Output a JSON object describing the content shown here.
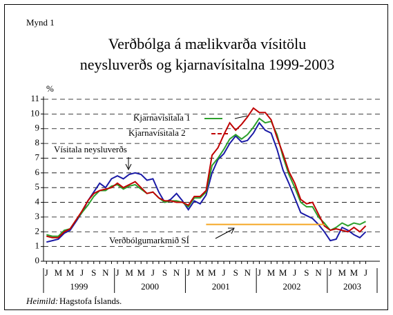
{
  "chart_data": {
    "type": "line",
    "label": "Mynd 1",
    "title": [
      "Verðbólga á mælikvarða vísitölu",
      "neysluverðs og kjarnavísitalna 1999-2003"
    ],
    "y_unit": "%",
    "source_label": "Heimild:",
    "source": "Hagstofa Íslands.",
    "categories": [
      "J",
      null,
      "M",
      null,
      "M",
      null,
      "J",
      null,
      "S",
      null,
      "N",
      null,
      "J",
      null,
      "M",
      null,
      "M",
      null,
      "J",
      null,
      "S",
      null,
      "N",
      null,
      "J",
      null,
      "M",
      null,
      "M",
      null,
      "J",
      null,
      "S",
      null,
      "N",
      null,
      "J",
      null,
      "M",
      null,
      "M",
      null,
      "J",
      null,
      "S",
      null,
      "N",
      null,
      "J",
      null,
      "M",
      null,
      "M",
      null,
      "J"
    ],
    "years": [
      "1999",
      "2000",
      "2001",
      "2002",
      "2003"
    ],
    "ylim": [
      0,
      11
    ],
    "yticks": [
      0,
      1,
      2,
      3,
      4,
      5,
      6,
      7,
      8,
      9,
      10,
      11
    ],
    "grid": true,
    "series": [
      {
        "name": "Vísitala neysluverðs",
        "color": "#1a1aa6",
        "values": [
          1.3,
          1.4,
          1.5,
          1.9,
          2.1,
          2.7,
          3.3,
          4.1,
          4.7,
          5.3,
          5.0,
          5.6,
          5.8,
          5.6,
          5.9,
          6.0,
          5.9,
          5.5,
          5.6,
          4.7,
          4.0,
          4.2,
          4.6,
          4.1,
          3.5,
          4.1,
          3.9,
          4.5,
          6.0,
          6.9,
          7.3,
          8.0,
          8.5,
          8.1,
          8.2,
          8.7,
          9.4,
          8.9,
          8.7,
          7.6,
          6.2,
          5.3,
          4.3,
          3.3,
          3.1,
          2.9,
          2.5,
          2.0,
          1.4,
          1.5,
          2.3,
          2.1,
          1.8,
          1.6,
          2.0
        ]
      },
      {
        "name": "Kjarnavísitala 1",
        "color": "#2ca02c",
        "values": [
          1.8,
          1.7,
          1.7,
          2.1,
          2.2,
          2.8,
          3.3,
          3.8,
          4.4,
          4.8,
          4.8,
          5.1,
          5.2,
          4.9,
          5.1,
          5.2,
          4.9,
          4.6,
          4.7,
          4.3,
          4.0,
          4.1,
          4.1,
          4.0,
          3.7,
          4.3,
          4.3,
          4.7,
          6.5,
          7.0,
          7.6,
          8.3,
          8.6,
          8.3,
          8.6,
          9.1,
          9.7,
          9.4,
          9.5,
          8.6,
          7.1,
          5.9,
          5.0,
          4.0,
          3.7,
          3.7,
          3.0,
          2.6,
          2.1,
          2.3,
          2.6,
          2.4,
          2.6,
          2.5,
          2.7
        ]
      },
      {
        "name": "Kjarnavísitala 2",
        "color": "#c00000",
        "values": [
          1.7,
          1.6,
          1.6,
          2.0,
          2.2,
          2.8,
          3.4,
          4.1,
          4.6,
          4.8,
          4.9,
          5.0,
          5.3,
          5.0,
          5.2,
          5.4,
          5.0,
          4.6,
          4.7,
          4.3,
          4.1,
          4.1,
          4.0,
          4.0,
          3.8,
          4.4,
          4.4,
          4.8,
          7.2,
          7.7,
          8.6,
          9.4,
          8.9,
          9.3,
          9.8,
          10.4,
          10.1,
          10.1,
          9.6,
          8.4,
          7.3,
          6.1,
          5.3,
          4.2,
          3.9,
          4.0,
          3.2,
          2.4,
          2.1,
          2.2,
          2.1,
          2.0,
          2.3,
          2.0,
          2.4
        ]
      },
      {
        "name": "Verðbólgumarkmið SÍ",
        "color": "#f5a623",
        "values": [
          null,
          null,
          null,
          null,
          null,
          null,
          null,
          null,
          null,
          null,
          null,
          null,
          null,
          null,
          null,
          null,
          null,
          null,
          null,
          null,
          null,
          null,
          null,
          null,
          null,
          null,
          null,
          2.5,
          2.5,
          2.5,
          2.5,
          2.5,
          2.5,
          2.5,
          2.5,
          2.5,
          2.5,
          2.5,
          2.5,
          2.5,
          2.5,
          2.5,
          2.5,
          2.5,
          2.5,
          2.5,
          2.5,
          2.5,
          null,
          null,
          null,
          null,
          null,
          null,
          null
        ]
      }
    ]
  }
}
